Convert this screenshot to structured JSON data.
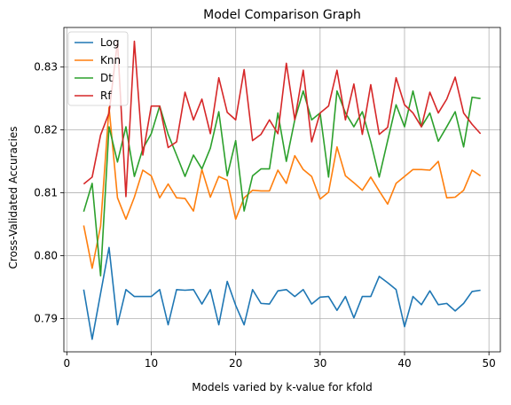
{
  "chart_data": {
    "type": "line",
    "title": "Model Comparison Graph",
    "xlabel": "Models varied by k-value for kfold",
    "ylabel": "Cross-Validated Accuracies",
    "xlim": [
      -0.35,
      51.35
    ],
    "ylim": [
      0.7847,
      0.8363
    ],
    "xticks": [
      0,
      10,
      20,
      30,
      40,
      50
    ],
    "yticks": [
      0.79,
      0.8,
      0.81,
      0.82,
      0.83
    ],
    "ytick_labels": [
      "0.79",
      "0.80",
      "0.81",
      "0.82",
      "0.83"
    ],
    "grid": true,
    "legend_position": "top-left",
    "x": [
      2,
      3,
      4,
      5,
      6,
      7,
      8,
      9,
      10,
      11,
      12,
      13,
      14,
      15,
      16,
      17,
      18,
      19,
      20,
      21,
      22,
      23,
      24,
      25,
      26,
      27,
      28,
      29,
      30,
      31,
      32,
      33,
      34,
      35,
      36,
      37,
      38,
      39,
      40,
      41,
      42,
      43,
      44,
      45,
      46,
      47,
      48,
      49
    ],
    "series": [
      {
        "name": "Log",
        "color": "#1f77b4",
        "values": [
          0.7946,
          0.7867,
          0.794,
          0.8013,
          0.789,
          0.7946,
          0.7935,
          0.7935,
          0.7935,
          0.7946,
          0.789,
          0.7946,
          0.7945,
          0.7946,
          0.7923,
          0.7946,
          0.789,
          0.7959,
          0.7921,
          0.789,
          0.7946,
          0.7924,
          0.7923,
          0.7944,
          0.7946,
          0.7935,
          0.7946,
          0.7923,
          0.7934,
          0.7935,
          0.7913,
          0.7935,
          0.7901,
          0.7935,
          0.7935,
          0.7967,
          0.7957,
          0.7946,
          0.7887,
          0.7935,
          0.7922,
          0.7944,
          0.7922,
          0.7924,
          0.7912,
          0.7924,
          0.7943,
          0.7945
        ]
      },
      {
        "name": "Knn",
        "color": "#ff7f0e",
        "values": [
          0.8048,
          0.798,
          0.8047,
          0.8236,
          0.8092,
          0.8058,
          0.8093,
          0.8136,
          0.8127,
          0.8092,
          0.8114,
          0.8092,
          0.8091,
          0.8071,
          0.8137,
          0.8093,
          0.8126,
          0.812,
          0.8058,
          0.8092,
          0.8104,
          0.8103,
          0.8103,
          0.8136,
          0.8115,
          0.8159,
          0.8137,
          0.8126,
          0.809,
          0.8101,
          0.8173,
          0.8127,
          0.8116,
          0.8104,
          0.8125,
          0.8103,
          0.8082,
          0.8115,
          0.8126,
          0.8137,
          0.8137,
          0.8136,
          0.815,
          0.8092,
          0.8093,
          0.8104,
          0.8136,
          0.8127
        ]
      },
      {
        "name": "Dt",
        "color": "#2ca02c",
        "values": [
          0.807,
          0.8115,
          0.7968,
          0.8205,
          0.8149,
          0.8205,
          0.8126,
          0.817,
          0.8194,
          0.8238,
          0.8193,
          0.816,
          0.8126,
          0.816,
          0.8138,
          0.8171,
          0.8229,
          0.8127,
          0.8183,
          0.8071,
          0.8127,
          0.8138,
          0.8138,
          0.8227,
          0.815,
          0.8216,
          0.8262,
          0.8216,
          0.8227,
          0.8125,
          0.8262,
          0.8227,
          0.8205,
          0.8229,
          0.8181,
          0.8125,
          0.8183,
          0.824,
          0.8205,
          0.8262,
          0.8205,
          0.8227,
          0.8182,
          0.8205,
          0.8229,
          0.8173,
          0.8252,
          0.825
        ]
      },
      {
        "name": "Rf",
        "color": "#d62728",
        "values": [
          0.8114,
          0.8125,
          0.8192,
          0.8227,
          0.8341,
          0.8094,
          0.8341,
          0.816,
          0.8238,
          0.8238,
          0.8172,
          0.8181,
          0.826,
          0.8216,
          0.8249,
          0.8194,
          0.8283,
          0.8228,
          0.8216,
          0.8296,
          0.8183,
          0.8193,
          0.8216,
          0.8194,
          0.8306,
          0.8216,
          0.8295,
          0.8181,
          0.8227,
          0.8238,
          0.8295,
          0.8216,
          0.8273,
          0.8193,
          0.8272,
          0.8193,
          0.8204,
          0.8283,
          0.824,
          0.8227,
          0.8205,
          0.826,
          0.8227,
          0.8249,
          0.8284,
          0.8227,
          0.8209,
          0.8194
        ]
      }
    ]
  }
}
